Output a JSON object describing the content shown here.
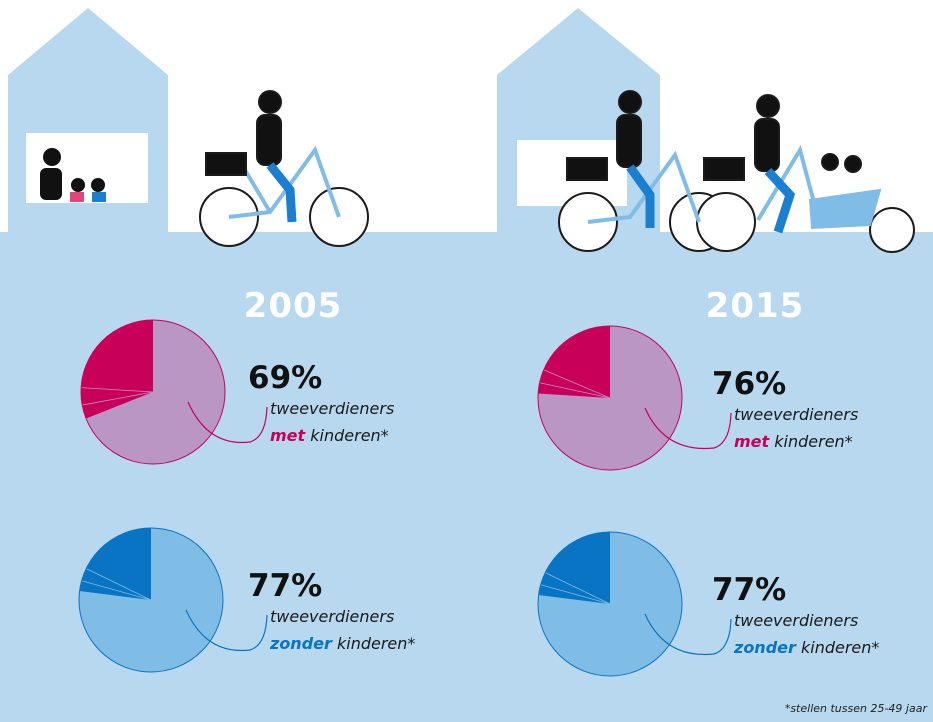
{
  "footnote": "*stellen tussen 25-49 jaar",
  "chart_data": [
    {
      "type": "pie",
      "title": "2005",
      "values": [
        69
      ],
      "value_labels": [
        "69%"
      ],
      "caption": "tweeverdieners",
      "highlight": "met",
      "caption_end": "kinderen*",
      "color": "#b996c4",
      "dark_color": "#c8005a"
    },
    {
      "type": "pie",
      "title": "2015",
      "values": [
        76
      ],
      "value_labels": [
        "76%"
      ],
      "caption": "tweeverdieners",
      "highlight": "met",
      "caption_end": "kinderen*",
      "color": "#b996c4",
      "dark_color": "#c8005a"
    },
    {
      "type": "pie",
      "values": [
        77
      ],
      "value_labels": [
        "77%"
      ],
      "caption": "tweeverdieners",
      "highlight": "zonder",
      "caption_end": "kinderen*",
      "color": "#7fbce6",
      "dark_color": "#0a74c4"
    },
    {
      "type": "pie",
      "values": [
        77
      ],
      "value_labels": [
        "77%"
      ],
      "caption": "tweeverdieners",
      "highlight": "zonder",
      "caption_end": "kinderen*",
      "color": "#7fbce6",
      "dark_color": "#0a74c4"
    }
  ]
}
